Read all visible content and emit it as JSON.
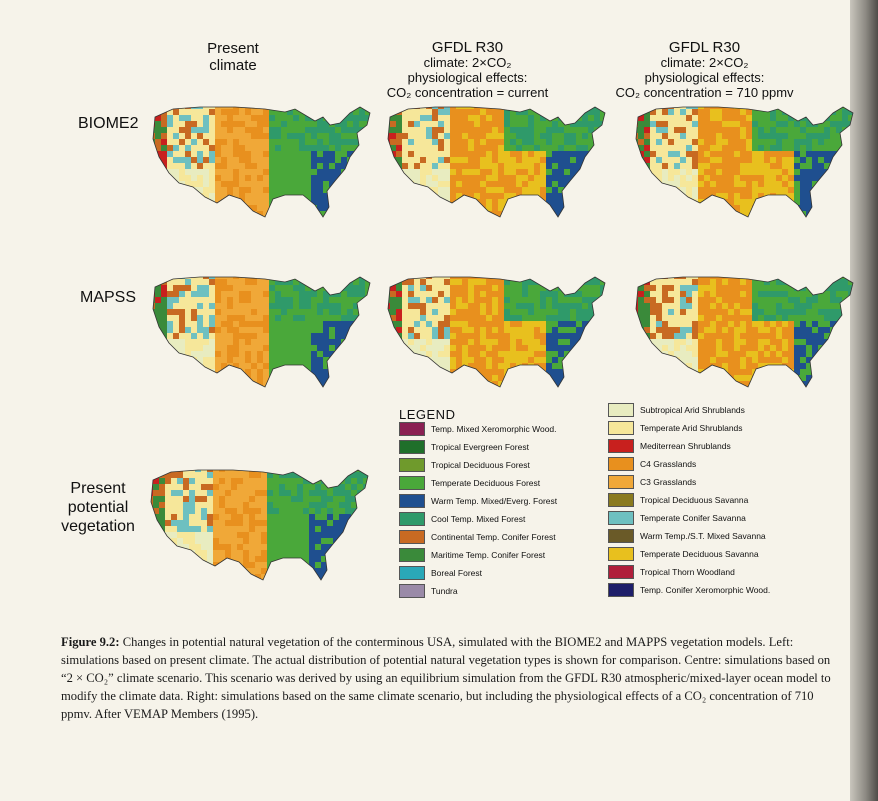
{
  "columns": {
    "present": [
      "Present",
      "climate"
    ],
    "gfdl_current": [
      "GFDL R30",
      "climate: 2×CO₂",
      "physiological effects:",
      "CO₂ concentration = current"
    ],
    "gfdl_710": [
      "GFDL R30",
      "climate: 2×CO₂",
      "physiological effects:",
      "CO₂ concentration = 710 ppmv"
    ]
  },
  "rows": {
    "biome2": "BIOME2",
    "mapss": "MAPSS"
  },
  "potential_vegetation_label": [
    "Present",
    "potential",
    "vegetation"
  ],
  "legend": {
    "title": "LEGEND",
    "left": [
      {
        "label": "Temp. Mixed Xeromorphic Wood.",
        "color": "#8a2052"
      },
      {
        "label": "Tropical Evergreen Forest",
        "color": "#1f6f2a"
      },
      {
        "label": "Tropical Deciduous Forest",
        "color": "#6f9a2c"
      },
      {
        "label": "Temperate Deciduous Forest",
        "color": "#4aa83a"
      },
      {
        "label": "Warm Temp. Mixed/Everg. Forest",
        "color": "#1f4f8f"
      },
      {
        "label": "Cool Temp. Mixed Forest",
        "color": "#2f9a6a"
      },
      {
        "label": "Continental Temp. Conifer Forest",
        "color": "#c86a22"
      },
      {
        "label": "Maritime Temp. Conifer Forest",
        "color": "#3a8a3a"
      },
      {
        "label": "Boreal Forest",
        "color": "#2aa8b8"
      },
      {
        "label": "Tundra",
        "color": "#9a8aa8"
      }
    ],
    "right": [
      {
        "label": "Subtropical Arid Shrublands",
        "color": "#e8ecc0"
      },
      {
        "label": "Temperate Arid Shrublands",
        "color": "#f6e79a"
      },
      {
        "label": "Mediterrean Shrublands",
        "color": "#c8201e"
      },
      {
        "label": "C4 Grasslands",
        "color": "#e8901e"
      },
      {
        "label": "C3 Grasslands",
        "color": "#f0a838"
      },
      {
        "label": "Tropical Deciduous Savanna",
        "color": "#8a7a1e"
      },
      {
        "label": "Temperate Conifer Savanna",
        "color": "#6ec0c0"
      },
      {
        "label": "Warm Temp./S.T. Mixed Savanna",
        "color": "#6a5a28"
      },
      {
        "label": "Temperate Deciduous Savanna",
        "color": "#e8c01e"
      },
      {
        "label": "Tropical Thorn Woodland",
        "color": "#b01e3a"
      },
      {
        "label": "Temp. Conifer Xeromorphic Wood.",
        "color": "#1e1e6a"
      }
    ]
  },
  "caption": {
    "label": "Figure 9.2:",
    "text": "Changes in potential natural vegetation of the conterminous USA, simulated with the BIOME2 and MAPPS vegetation models. Left: simulations based on present climate. The actual distribution of potential natural vegetation types is shown for comparison. Centre: simulations based on “2 × CO₂” climate scenario. This scenario was derived by using an equilibrium simulation from the GFDL R30 atmospheric/mixed-layer ocean model to modify the climate data. Right: simulations based on the same climate scenario, but including the physiological effects of a CO₂ concentration of 710 ppmv. After VEMAP Members (1995)."
  }
}
